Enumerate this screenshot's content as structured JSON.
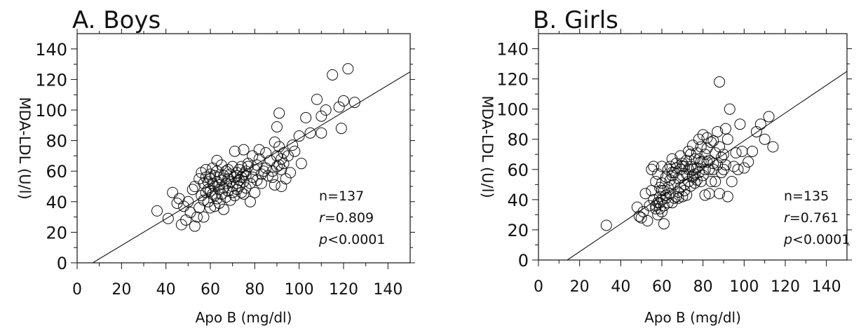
{
  "chart_data": [
    {
      "type": "scatter",
      "panel_title": "A. Boys",
      "xlabel": "Apo B (mg/dl)",
      "ylabel": "MDA-LDL (U/l)",
      "xlim": [
        0,
        150
      ],
      "ylim": [
        0,
        150
      ],
      "xticks": [
        0,
        20,
        40,
        60,
        80,
        100,
        120,
        140
      ],
      "yticks": [
        0,
        20,
        40,
        60,
        80,
        100,
        120,
        140
      ],
      "stats": {
        "n": "n=137",
        "r_label": "r",
        "r_value": "=0.809",
        "p_label": "p",
        "p_value": "<0.0001"
      },
      "regression_line": {
        "x": [
          7,
          150
        ],
        "y": [
          0,
          125
        ]
      },
      "points": {
        "x": [
          36,
          41,
          43,
          45,
          46,
          47,
          48,
          49,
          50,
          51,
          52,
          53,
          53,
          54,
          55,
          55,
          56,
          56,
          57,
          57,
          57,
          58,
          58,
          58,
          59,
          59,
          59,
          60,
          60,
          60,
          60,
          61,
          61,
          61,
          62,
          62,
          62,
          62,
          63,
          63,
          63,
          63,
          64,
          64,
          64,
          64,
          65,
          65,
          65,
          66,
          66,
          66,
          67,
          67,
          67,
          68,
          68,
          68,
          69,
          69,
          69,
          70,
          70,
          70,
          71,
          71,
          71,
          72,
          72,
          72,
          72,
          73,
          73,
          73,
          74,
          74,
          74,
          75,
          75,
          75,
          75,
          76,
          76,
          76,
          77,
          77,
          78,
          78,
          79,
          79,
          80,
          80,
          81,
          81,
          82,
          82,
          83,
          83,
          84,
          85,
          85,
          86,
          87,
          88,
          88,
          89,
          89,
          90,
          90,
          90,
          91,
          91,
          91,
          92,
          92,
          92,
          93,
          93,
          94,
          95,
          96,
          97,
          98,
          100,
          101,
          103,
          105,
          108,
          110,
          112,
          115,
          118,
          120,
          122,
          119,
          110,
          125
        ],
        "y": [
          34,
          29,
          46,
          39,
          42,
          25,
          37,
          28,
          40,
          33,
          48,
          24,
          50,
          30,
          55,
          36,
          44,
          59,
          41,
          52,
          30,
          56,
          46,
          61,
          40,
          53,
          48,
          47,
          58,
          36,
          55,
          45,
          52,
          62,
          50,
          57,
          37,
          44,
          60,
          53,
          67,
          42,
          48,
          56,
          51,
          39,
          54,
          64,
          45,
          49,
          57,
          35,
          52,
          60,
          43,
          55,
          47,
          61,
          53,
          41,
          58,
          50,
          63,
          46,
          56,
          73,
          44,
          52,
          59,
          57,
          48,
          54,
          61,
          50,
          56,
          46,
          63,
          53,
          74,
          58,
          45,
          49,
          60,
          57,
          63,
          65,
          52,
          40,
          56,
          70,
          61,
          46,
          64,
          54,
          74,
          68,
          52,
          58,
          60,
          72,
          62,
          57,
          67,
          56,
          60,
          51,
          79,
          63,
          89,
          70,
          64,
          98,
          76,
          61,
          68,
          50,
          65,
          72,
          55,
          70,
          59,
          77,
          73,
          83,
          65,
          95,
          85,
          107,
          85,
          100,
          123,
          102,
          106,
          127,
          88,
          96,
          105
        ]
      }
    },
    {
      "type": "scatter",
      "panel_title": "B. Girls",
      "xlabel": "Apo B (mg/dl)",
      "ylabel": "MDA-LDL (U/l)",
      "xlim": [
        0,
        150
      ],
      "ylim": [
        0,
        150
      ],
      "xticks": [
        0,
        20,
        40,
        60,
        80,
        100,
        120,
        140
      ],
      "yticks": [
        0,
        20,
        40,
        60,
        80,
        100,
        120,
        140
      ],
      "stats": {
        "n": "n=135",
        "r_label": "r",
        "r_value": "=0.761",
        "p_label": "p",
        "p_value": "<0.0001"
      },
      "regression_line": {
        "x": [
          14,
          150
        ],
        "y": [
          0,
          125
        ]
      },
      "points": {
        "x": [
          33,
          48,
          49,
          50,
          51,
          52,
          53,
          54,
          55,
          55,
          56,
          56,
          57,
          57,
          57,
          58,
          58,
          58,
          59,
          59,
          59,
          59,
          60,
          60,
          60,
          60,
          61,
          61,
          61,
          62,
          62,
          62,
          63,
          63,
          63,
          64,
          64,
          64,
          65,
          65,
          65,
          66,
          66,
          66,
          67,
          67,
          67,
          68,
          68,
          68,
          69,
          69,
          69,
          70,
          70,
          70,
          71,
          71,
          71,
          72,
          72,
          72,
          73,
          73,
          73,
          74,
          74,
          74,
          75,
          75,
          75,
          76,
          76,
          76,
          77,
          77,
          77,
          78,
          78,
          78,
          79,
          79,
          79,
          80,
          80,
          80,
          81,
          81,
          81,
          82,
          82,
          82,
          83,
          83,
          83,
          84,
          84,
          85,
          85,
          86,
          86,
          87,
          87,
          88,
          88,
          89,
          89,
          90,
          90,
          91,
          91,
          92,
          93,
          94,
          95,
          96,
          97,
          98,
          99,
          100,
          102,
          104,
          106,
          108,
          110,
          112,
          114,
          88,
          92,
          60,
          65,
          58,
          70,
          75,
          85
        ],
        "y": [
          23,
          35,
          29,
          28,
          32,
          44,
          26,
          36,
          46,
          60,
          40,
          62,
          34,
          52,
          36,
          38,
          30,
          57,
          42,
          34,
          48,
          38,
          40,
          32,
          51,
          62,
          36,
          46,
          24,
          43,
          55,
          41,
          38,
          48,
          60,
          44,
          62,
          53,
          38,
          67,
          56,
          41,
          58,
          50,
          42,
          64,
          61,
          45,
          54,
          41,
          60,
          48,
          69,
          42,
          56,
          64,
          50,
          62,
          46,
          57,
          43,
          66,
          72,
          52,
          60,
          70,
          49,
          62,
          55,
          76,
          60,
          51,
          67,
          57,
          61,
          71,
          53,
          80,
          58,
          67,
          75,
          65,
          52,
          56,
          65,
          83,
          43,
          60,
          70,
          74,
          65,
          81,
          44,
          66,
          60,
          78,
          52,
          60,
          79,
          71,
          52,
          85,
          63,
          44,
          75,
          58,
          68,
          70,
          60,
          87,
          63,
          80,
          100,
          52,
          62,
          71,
          60,
          90,
          72,
          61,
          65,
          72,
          85,
          90,
          80,
          95,
          75,
          118,
          42,
          46,
          58,
          38,
          62,
          56,
          64
        ]
      }
    }
  ]
}
